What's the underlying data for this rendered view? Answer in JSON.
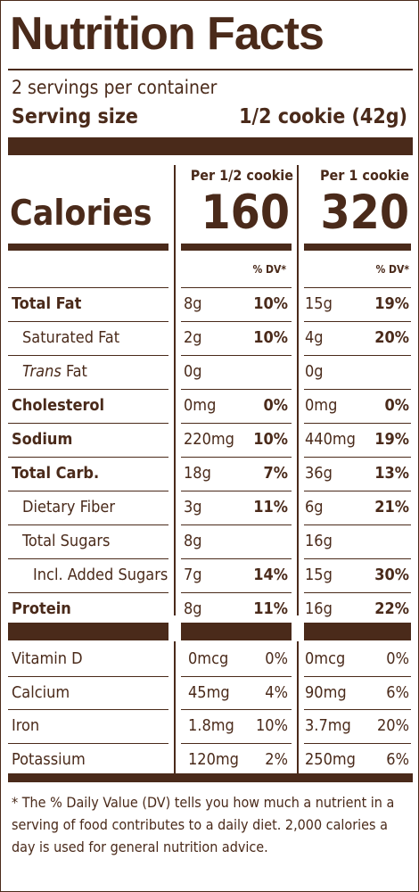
{
  "title": "Nutrition Facts",
  "servings_per_container": "2 servings per container",
  "serving_size": {
    "label": "Serving size",
    "value": "1/2 cookie (42g)"
  },
  "columns": [
    {
      "header": "Per 1/2 cookie",
      "calories": "160",
      "dv_header": "% DV*"
    },
    {
      "header": "Per 1 cookie",
      "calories": "320",
      "dv_header": "% DV*"
    }
  ],
  "calories_label": "Calories",
  "nutrients": [
    {
      "label": "Total Fat",
      "style": "bold",
      "c1": {
        "amount": "8g",
        "dv": "10%"
      },
      "c2": {
        "amount": "15g",
        "dv": "19%"
      }
    },
    {
      "label": "Saturated Fat",
      "style": "sub",
      "c1": {
        "amount": "2g",
        "dv": "10%"
      },
      "c2": {
        "amount": "4g",
        "dv": "20%"
      }
    },
    {
      "label": "Fat",
      "label_italic_prefix": "Trans",
      "style": "sub",
      "c1": {
        "amount": "0g",
        "dv": ""
      },
      "c2": {
        "amount": "0g",
        "dv": ""
      }
    },
    {
      "label": "Cholesterol",
      "style": "bold",
      "c1": {
        "amount": "0mg",
        "dv": "0%"
      },
      "c2": {
        "amount": "0mg",
        "dv": "0%"
      }
    },
    {
      "label": "Sodium",
      "style": "bold",
      "c1": {
        "amount": "220mg",
        "dv": "10%"
      },
      "c2": {
        "amount": "440mg",
        "dv": "19%"
      }
    },
    {
      "label": "Total Carb.",
      "style": "bold",
      "c1": {
        "amount": "18g",
        "dv": "7%"
      },
      "c2": {
        "amount": "36g",
        "dv": "13%"
      }
    },
    {
      "label": "Dietary Fiber",
      "style": "sub",
      "c1": {
        "amount": "3g",
        "dv": "11%"
      },
      "c2": {
        "amount": "6g",
        "dv": "21%"
      }
    },
    {
      "label": "Total Sugars",
      "style": "sub",
      "c1": {
        "amount": "8g",
        "dv": ""
      },
      "c2": {
        "amount": "16g",
        "dv": ""
      }
    },
    {
      "label": "Incl. Added Sugars",
      "style": "subsub",
      "c1": {
        "amount": "7g",
        "dv": "14%"
      },
      "c2": {
        "amount": "15g",
        "dv": "30%"
      }
    },
    {
      "label": "Protein",
      "style": "bold",
      "c1": {
        "amount": "8g",
        "dv": "11%"
      },
      "c2": {
        "amount": "16g",
        "dv": "22%"
      }
    }
  ],
  "micronutrients": [
    {
      "label": "Vitamin D",
      "c1": {
        "amount": "0mcg",
        "dv": "0%"
      },
      "c2": {
        "amount": "0mcg",
        "dv": "0%"
      }
    },
    {
      "label": "Calcium",
      "c1": {
        "amount": "45mg",
        "dv": "4%"
      },
      "c2": {
        "amount": "90mg",
        "dv": "6%"
      }
    },
    {
      "label": "Iron",
      "c1": {
        "amount": "1.8mg",
        "dv": "10%"
      },
      "c2": {
        "amount": "3.7mg",
        "dv": "20%"
      }
    },
    {
      "label": "Potassium",
      "c1": {
        "amount": "120mg",
        "dv": "2%"
      },
      "c2": {
        "amount": "250mg",
        "dv": "6%"
      }
    }
  ],
  "footnote": "* The % Daily Value (DV) tells you how much a nutrient in a serving of food contributes to a daily diet. 2,000 calories a day is used for general nutrition advice.",
  "colors": {
    "ink": "#4a2a1a",
    "background": "#ffffff"
  }
}
